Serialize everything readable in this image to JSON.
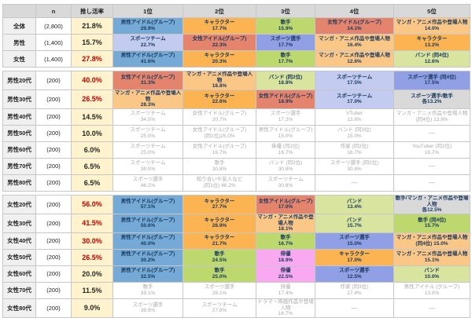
{
  "chart_data": {
    "type": "table",
    "title": "推し活率と推し対象ランキング（性別・年代別）",
    "palette": {
      "male_idol": "#74aad5",
      "female_idol": "#e5846c",
      "character": "#fbb451",
      "sports_team": "#c3ccf0",
      "sports_player": "#91a0e4",
      "singer": "#bdd96d",
      "manga_anime": "#fbc787",
      "band": "#d9e59e",
      "actor": "#f9a9ef",
      "tie": "#d9d9d9",
      "none": "#ffffff",
      "rate_red": "#c00000",
      "rate_black": "#262626"
    },
    "header": {
      "group": "",
      "n": "n",
      "rate": "推し活率",
      "ranks": [
        "1位",
        "2位",
        "3位",
        "4位",
        "5位"
      ]
    },
    "sections": [
      {
        "rows": [
          {
            "group": "全体",
            "n": "(2,800)",
            "rate": "21.8%",
            "hot": false,
            "cells": [
              {
                "t": "男性アイドル(グループ)",
                "v": "29.9%",
                "c": "male_idol"
              },
              {
                "t": "キャラクター",
                "v": "17.7%",
                "c": "character"
              },
              {
                "t": "歌手",
                "v": "15.9%",
                "c": "singer"
              },
              {
                "t": "女性アイドル(グループ)",
                "v": "14.1%",
                "c": "female_idol"
              },
              {
                "t": "マンガ・アニメ作品や登場人物",
                "v": "14.0%",
                "c": "manga_anime"
              }
            ]
          },
          {
            "group": "男性",
            "n": "(1,400)",
            "rate": "15.7%",
            "hot": false,
            "cells": [
              {
                "t": "スポーツチーム",
                "v": "22.7%",
                "c": "sports_team"
              },
              {
                "t": "女性アイドル(グループ)",
                "v": "22.3%",
                "c": "female_idol"
              },
              {
                "t": "スポーツ選手",
                "v": "17.7%",
                "c": "sports_player"
              },
              {
                "t": "マンガ・アニメ作品や登場人物",
                "v": "16.4%",
                "c": "manga_anime"
              },
              {
                "t": "キャラクター",
                "v": "13.2%",
                "c": "character"
              }
            ]
          },
          {
            "group": "女性",
            "n": "(1,400)",
            "rate": "27.8%",
            "hot": true,
            "cells": [
              {
                "t": "男性アイドル(グループ)",
                "v": "41.6%",
                "c": "male_idol"
              },
              {
                "t": "キャラクター",
                "v": "20.3%",
                "c": "character"
              },
              {
                "t": "歌手",
                "v": "17.7%",
                "c": "singer"
              },
              {
                "t": "マンガ・アニメ作品や登場人物",
                "v": "12.6%",
                "c": "manga_anime"
              },
              {
                "t": "バンド (同4位)",
                "v": "12.6%",
                "c": "band"
              }
            ]
          }
        ]
      },
      {
        "rows": [
          {
            "group": "男性20代",
            "n": "(200)",
            "rate": "40.0%",
            "hot": true,
            "cells": [
              {
                "t": "女性アイドル(グループ)",
                "v": "31.3%",
                "c": "female_idol"
              },
              {
                "t": "マンガ・アニメ作品や登場人物",
                "v": "18.8%",
                "c": "manga_anime"
              },
              {
                "t": "バンド (同2位)",
                "v": "18.8%",
                "c": "band"
              },
              {
                "t": "スポーツチーム",
                "v": "17.5%",
                "c": "sports_team"
              },
              {
                "t": "スポーツ選手 (同4位)",
                "v": "17.5%",
                "c": "sports_player"
              }
            ]
          },
          {
            "group": "男性30代",
            "n": "(200)",
            "rate": "26.5%",
            "hot": true,
            "cells": [
              {
                "t": "マンガ・アニメ作品や登場人物",
                "v": "28.3%",
                "c": "manga_anime"
              },
              {
                "t": "キャラクター",
                "v": "22.6%",
                "c": "character"
              },
              {
                "t": "女性アイドル(グループ)",
                "v": "18.9%",
                "c": "female_idol"
              },
              {
                "t": "スポーツチーム",
                "v": "17.0%",
                "c": "sports_team"
              },
              {
                "t": "スポーツ選手/歌手",
                "v": "各13.2%",
                "c": "tie"
              }
            ]
          },
          {
            "group": "男性40代",
            "n": "(200)",
            "rate": "14.5%",
            "hot": false,
            "cells": [
              {
                "t": "スポーツチーム",
                "v": "34.5%",
                "c": "none",
                "g": true
              },
              {
                "t": "女性アイドル(グループ)",
                "v": "20.7%",
                "c": "none",
                "g": true
              },
              {
                "t": "スポーツ選手",
                "v": "17.2%",
                "c": "none",
                "g": true
              },
              {
                "t": "VTuber",
                "v": "13.8%",
                "c": "none",
                "g": true
              },
              {
                "t": "マンガ・アニメ作品や登場人物",
                "v": "(同4位) 13.8%",
                "c": "none",
                "g": true
              }
            ]
          },
          {
            "group": "男性50代",
            "n": "(200)",
            "rate": "10.0%",
            "hot": false,
            "cells": [
              {
                "t": "スポーツチーム",
                "v": "25.0%",
                "c": "none",
                "g": true
              },
              {
                "t": "女性アイドル(グループ)",
                "v": "(同1位)25.0%",
                "c": "none",
                "g": true
              },
              {
                "t": "男性アイドル(グループ)",
                "v": "15.0%",
                "c": "none",
                "g": true
              },
              {
                "t": "バンド (同3位)",
                "v": "15.0%",
                "c": "none",
                "g": true
              },
              {
                "t": "—",
                "v": "",
                "c": "none",
                "g": true,
                "dash": true
              }
            ]
          },
          {
            "group": "男性60代",
            "n": "(200)",
            "rate": "6.0%",
            "hot": false,
            "cells": [
              {
                "t": "スポーツチーム",
                "v": "25.0%",
                "c": "none",
                "g": true
              },
              {
                "t": "女性アイドル(グループ)",
                "v": "16.7%",
                "c": "none",
                "g": true
              },
              {
                "t": "俳優 (同2位)",
                "v": "16.7%",
                "c": "none",
                "g": true
              },
              {
                "t": "作家 (同2位)",
                "v": "16.7%",
                "c": "none",
                "g": true
              },
              {
                "t": "YouTuber (同2位)",
                "v": "16.7%",
                "c": "none",
                "g": true
              }
            ]
          },
          {
            "group": "男性70代",
            "n": "(200)",
            "rate": "6.5%",
            "hot": false,
            "cells": [
              {
                "t": "スポーツチーム",
                "v": "38.5%",
                "c": "none",
                "g": true
              },
              {
                "t": "歌手",
                "v": "30.8%",
                "c": "none",
                "g": true
              },
              {
                "t": "バンド (同2位)",
                "v": "30.8%",
                "c": "none",
                "g": true
              },
              {
                "t": "スポーツ選手 (同2位)",
                "v": "30.8%",
                "c": "none",
                "g": true
              },
              {
                "t": "—",
                "v": "",
                "c": "none",
                "g": true,
                "dash": true
              }
            ]
          },
          {
            "group": "男性80代",
            "n": "(200)",
            "rate": "6.5%",
            "hot": false,
            "cells": [
              {
                "t": "スポーツ選手",
                "v": "46.2%",
                "c": "none",
                "g": true
              },
              {
                "t": "知り合いや友人など",
                "v": "(同1位) 46.2%",
                "c": "none",
                "g": true
              },
              {
                "t": "スポーツチーム",
                "v": "30.8%",
                "c": "none",
                "g": true
              },
              {
                "t": "—",
                "v": "",
                "c": "none",
                "g": true,
                "dash": true
              },
              {
                "t": "—",
                "v": "",
                "c": "none",
                "g": true,
                "dash": true
              }
            ]
          }
        ]
      },
      {
        "rows": [
          {
            "group": "女性20代",
            "n": "(200)",
            "rate": "56.0%",
            "hot": true,
            "cells": [
              {
                "t": "男性アイドル(グループ)",
                "v": "57.1%",
                "c": "male_idol"
              },
              {
                "t": "キャラクター",
                "v": "27.7%",
                "c": "character"
              },
              {
                "t": "女性アイドル(グループ)",
                "v": "17.0%",
                "c": "female_idol"
              },
              {
                "t": "バンド",
                "v": "13.4%",
                "c": "band"
              },
              {
                "t": "歌手/マンガ・アニメ作品や登場人物",
                "v": "各12.5%",
                "c": "tie"
              }
            ]
          },
          {
            "group": "女性30代",
            "n": "(200)",
            "rate": "41.5%",
            "hot": true,
            "cells": [
              {
                "t": "男性アイドル(グループ)",
                "v": "50.6%",
                "c": "male_idol"
              },
              {
                "t": "キャラクター",
                "v": "28.9%",
                "c": "character"
              },
              {
                "t": "マンガ・アニメ作品や登場人物",
                "v": "18.1%",
                "c": "manga_anime"
              },
              {
                "t": "バンド",
                "v": "15.7%",
                "c": "band"
              },
              {
                "t": "歌手 (同4位)",
                "v": "15.7%",
                "c": "singer"
              }
            ]
          },
          {
            "group": "女性40代",
            "n": "(200)",
            "rate": "30.0%",
            "hot": true,
            "cells": [
              {
                "t": "男性アイドル(グループ)",
                "v": "40.0%",
                "c": "male_idol"
              },
              {
                "t": "キャラクター",
                "v": "21.7%",
                "c": "character"
              },
              {
                "t": "歌手",
                "v": "16.7%",
                "c": "singer"
              },
              {
                "t": "スポーツ選手",
                "v": "15.0%",
                "c": "sports_player"
              },
              {
                "t": "マンガ・アニメ作品や登場人物",
                "v": "(同4位) 15.0%",
                "c": "manga_anime"
              }
            ]
          },
          {
            "group": "女性50代",
            "n": "(200)",
            "rate": "26.5%",
            "hot": true,
            "cells": [
              {
                "t": "男性アイドル(グループ)",
                "v": "30.2%",
                "c": "male_idol"
              },
              {
                "t": "歌手",
                "v": "24.5%",
                "c": "singer"
              },
              {
                "t": "俳優",
                "v": "18.9%",
                "c": "actor"
              },
              {
                "t": "キャラクター",
                "v": "17.0%",
                "c": "character"
              },
              {
                "t": "マンガ・アニメ作品や登場人物",
                "v": "15.1%",
                "c": "manga_anime"
              }
            ]
          },
          {
            "group": "女性60代",
            "n": "(200)",
            "rate": "20.0%",
            "hot": false,
            "cells": [
              {
                "t": "男性アイドル(グループ)",
                "v": "32.5%",
                "c": "male_idol"
              },
              {
                "t": "歌手",
                "v": "25.0%",
                "c": "singer"
              },
              {
                "t": "俳優",
                "v": "22.5%",
                "c": "actor"
              },
              {
                "t": "スポーツ選手",
                "v": "12.5%",
                "c": "sports_player"
              },
              {
                "t": "バンド",
                "v": "10.0%",
                "c": "band"
              }
            ]
          },
          {
            "group": "女性70代",
            "n": "(200)",
            "rate": "11.5%",
            "hot": false,
            "cells": [
              {
                "t": "歌手",
                "v": "39.1%",
                "c": "none",
                "g": true
              },
              {
                "t": "スポーツ選手",
                "v": "26.1%",
                "c": "none",
                "g": true
              },
              {
                "t": "俳優",
                "v": "17.4%",
                "c": "none",
                "g": true
              },
              {
                "t": "作家 (同3位)",
                "v": "17.4%",
                "c": "none",
                "g": true
              },
              {
                "t": "男性アイドル (グループ)",
                "v": "13.0%",
                "c": "none",
                "g": true
              }
            ]
          },
          {
            "group": "女性80代",
            "n": "(200)",
            "rate": "9.0%",
            "hot": false,
            "cells": [
              {
                "t": "スポーツ選手",
                "v": "38.9%",
                "c": "none",
                "g": true
              },
              {
                "t": "スポーツチーム",
                "v": "27.8%",
                "c": "none",
                "g": true
              },
              {
                "t": "ドラマ・映画作品や登場人物",
                "v": "16.7%",
                "c": "none",
                "g": true
              },
              {
                "t": "—",
                "v": "",
                "c": "none",
                "g": true,
                "dash": true
              },
              {
                "t": "—",
                "v": "",
                "c": "none",
                "g": true,
                "dash": true
              }
            ]
          }
        ]
      }
    ]
  }
}
